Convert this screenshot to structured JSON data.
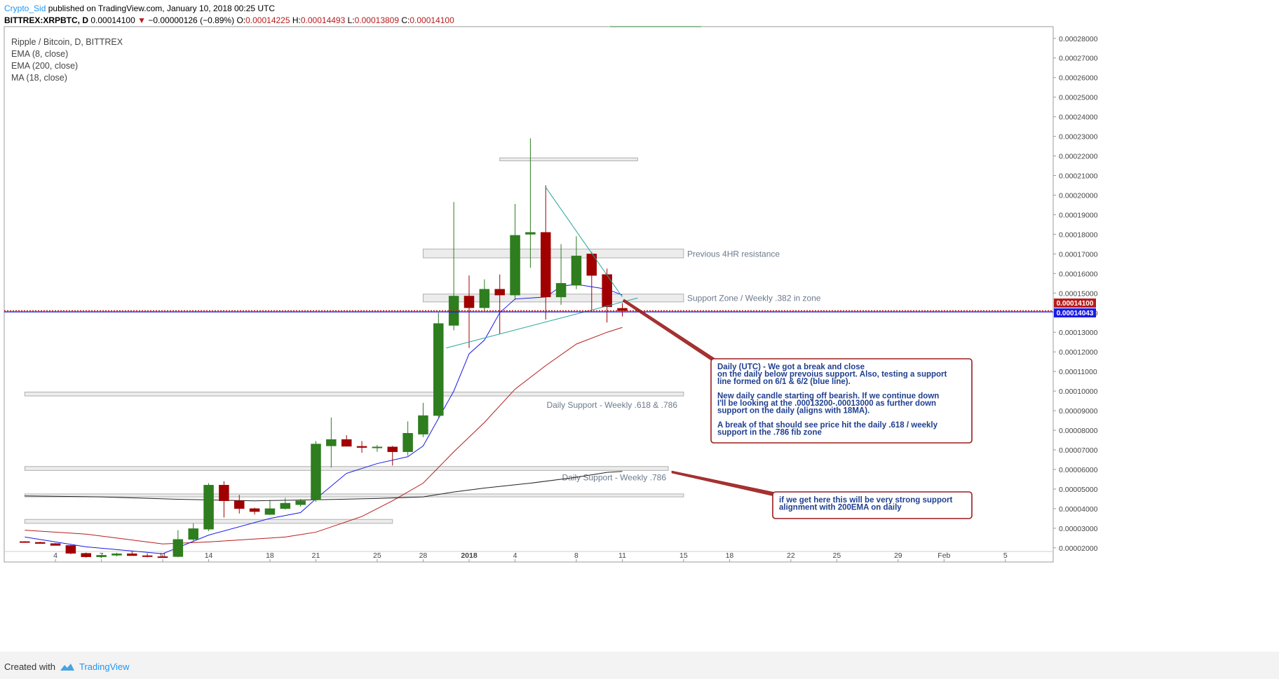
{
  "header": {
    "author": "Crypto_Sid",
    "published": "published on TradingView.com, January 10, 2018 00:25 UTC",
    "symbol": "BITTREX:XRPBTC, D",
    "last": "0.00014100",
    "change": "−0.00000126 (−0.89%)",
    "open_label": "O:",
    "open": "0.00014225",
    "high_label": "H:",
    "high": "0.00014493",
    "low_label": "L:",
    "low": "0.00013809",
    "close_label": "C:",
    "close": "0.00014100"
  },
  "legend": {
    "title": "Ripple / Bitcoin, D, BITTREX",
    "ema8": "EMA (8, close)",
    "ema200": "EMA (200, close)",
    "ma18": "MA (18, close)"
  },
  "footer": {
    "created_with": "Created with",
    "brand": "TradingView"
  },
  "chart_data": {
    "type": "candlestick",
    "ylim": [
      1.85e-05,
      0.000286
    ],
    "y_tick_values": [
      2e-05,
      3e-05,
      4e-05,
      5e-05,
      6e-05,
      7e-05,
      8e-05,
      9e-05,
      0.0001,
      0.00011,
      0.00012,
      0.00013,
      0.00014,
      0.00015,
      0.00016,
      0.00017,
      0.00018,
      0.00019,
      0.0002,
      0.00021,
      0.00022,
      0.00023,
      0.00024,
      0.00025,
      0.00026,
      0.00027,
      0.00028
    ],
    "y_tick_labels": [
      "0.00002000",
      "0.00003000",
      "0.00004000",
      "0.00005000",
      "0.00006000",
      "0.00007000",
      "0.00008000",
      "0.00009000",
      "0.00010000",
      "0.00011000",
      "0.00012000",
      "0.00013000",
      "0.00014000",
      "0.00015000",
      "0.00016000",
      "0.00017000",
      "0.00018000",
      "0.00019000",
      "0.00020000",
      "0.00021000",
      "0.00022000",
      "0.00023000",
      "0.00024000",
      "0.00025000",
      "0.00026000",
      "0.00027000",
      "0.00028000"
    ],
    "x_ticks": [
      {
        "label": "4",
        "day": -27
      },
      {
        "label": "7",
        "day": -24
      },
      {
        "label": "11",
        "day": -20
      },
      {
        "label": "14",
        "day": -17
      },
      {
        "label": "18",
        "day": -13
      },
      {
        "label": "21",
        "day": -10
      },
      {
        "label": "25",
        "day": -6
      },
      {
        "label": "28",
        "day": -3
      },
      {
        "label": "2018",
        "day": 0
      },
      {
        "label": "4",
        "day": 3
      },
      {
        "label": "8",
        "day": 7
      },
      {
        "label": "11",
        "day": 10
      },
      {
        "label": "15",
        "day": 14
      },
      {
        "label": "18",
        "day": 17
      },
      {
        "label": "22",
        "day": 21
      },
      {
        "label": "25",
        "day": 24
      },
      {
        "label": "29",
        "day": 28
      },
      {
        "label": "Feb",
        "day": 31
      },
      {
        "label": "5",
        "day": 35
      }
    ],
    "candles": [
      {
        "day": -29,
        "o": 2.32e-05,
        "h": 2.34e-05,
        "l": 2.28e-05,
        "c": 2.28e-05
      },
      {
        "day": -28,
        "o": 2.28e-05,
        "h": 2.31e-05,
        "l": 2.22e-05,
        "c": 2.22e-05
      },
      {
        "day": -27,
        "o": 2.22e-05,
        "h": 2.24e-05,
        "l": 2.12e-05,
        "c": 2.12e-05
      },
      {
        "day": -26,
        "o": 2.12e-05,
        "h": 2.14e-05,
        "l": 1.68e-05,
        "c": 1.72e-05
      },
      {
        "day": -25,
        "o": 1.72e-05,
        "h": 1.76e-05,
        "l": 1.5e-05,
        "c": 1.54e-05
      },
      {
        "day": -24,
        "o": 1.54e-05,
        "h": 1.65e-05,
        "l": 1.48e-05,
        "c": 1.62e-05
      },
      {
        "day": -23,
        "o": 1.62e-05,
        "h": 1.75e-05,
        "l": 1.56e-05,
        "c": 1.7e-05
      },
      {
        "day": -22,
        "o": 1.7e-05,
        "h": 1.82e-05,
        "l": 1.6e-05,
        "c": 1.6e-05
      },
      {
        "day": -21,
        "o": 1.6e-05,
        "h": 1.72e-05,
        "l": 1.52e-05,
        "c": 1.55e-05
      },
      {
        "day": -20,
        "o": 1.55e-05,
        "h": 1.65e-05,
        "l": 1.5e-05,
        "c": 1.52e-05
      },
      {
        "day": -19,
        "o": 1.55e-05,
        "h": 2.9e-05,
        "l": 1.52e-05,
        "c": 2.43e-05
      },
      {
        "day": -18,
        "o": 2.43e-05,
        "h": 3.25e-05,
        "l": 2.35e-05,
        "c": 2.98e-05
      },
      {
        "day": -17,
        "o": 2.95e-05,
        "h": 5.3e-05,
        "l": 2.85e-05,
        "c": 5.2e-05
      },
      {
        "day": -16,
        "o": 5.2e-05,
        "h": 5.4e-05,
        "l": 3.55e-05,
        "c": 4.4e-05
      },
      {
        "day": -15,
        "o": 4.4e-05,
        "h": 4.7e-05,
        "l": 3.75e-05,
        "c": 4e-05
      },
      {
        "day": -14,
        "o": 4e-05,
        "h": 4.05e-05,
        "l": 3.7e-05,
        "c": 3.85e-05
      },
      {
        "day": -13,
        "o": 3.7e-05,
        "h": 4.45e-05,
        "l": 3.68e-05,
        "c": 4e-05
      },
      {
        "day": -12,
        "o": 4e-05,
        "h": 4.55e-05,
        "l": 3.95e-05,
        "c": 4.28e-05
      },
      {
        "day": -11,
        "o": 4.2e-05,
        "h": 4.5e-05,
        "l": 4.1e-05,
        "c": 4.4e-05
      },
      {
        "day": -10,
        "o": 4.45e-05,
        "h": 7.45e-05,
        "l": 4.35e-05,
        "c": 7.3e-05
      },
      {
        "day": -9,
        "o": 7.2e-05,
        "h": 8.65e-05,
        "l": 6.1e-05,
        "c": 7.53e-05
      },
      {
        "day": -8,
        "o": 7.53e-05,
        "h": 7.75e-05,
        "l": 7.18e-05,
        "c": 7.18e-05
      },
      {
        "day": -7,
        "o": 7.18e-05,
        "h": 7.45e-05,
        "l": 6.85e-05,
        "c": 7.12e-05
      },
      {
        "day": -6,
        "o": 7.12e-05,
        "h": 7.25e-05,
        "l": 6.9e-05,
        "c": 7.15e-05
      },
      {
        "day": -5,
        "o": 7.15e-05,
        "h": 7.2e-05,
        "l": 6.2e-05,
        "c": 6.9e-05
      },
      {
        "day": -4,
        "o": 6.9e-05,
        "h": 8.45e-05,
        "l": 6.7e-05,
        "c": 7.85e-05
      },
      {
        "day": -3,
        "o": 7.8e-05,
        "h": 9.4e-05,
        "l": 7.65e-05,
        "c": 8.75e-05
      },
      {
        "day": -2,
        "o": 8.75e-05,
        "h": 0.00014,
        "l": 8.65e-05,
        "c": 0.0001345
      },
      {
        "day": -1,
        "o": 0.0001335,
        "h": 0.0001965,
        "l": 0.000131,
        "c": 0.0001485
      },
      {
        "day": 0,
        "o": 0.0001485,
        "h": 0.000159,
        "l": 0.000122,
        "c": 0.0001425
      },
      {
        "day": 1,
        "o": 0.0001425,
        "h": 0.000157,
        "l": 0.000141,
        "c": 0.000152
      },
      {
        "day": 2,
        "o": 0.000152,
        "h": 0.0001595,
        "l": 0.000129,
        "c": 0.000149
      },
      {
        "day": 3,
        "o": 0.000149,
        "h": 0.0001955,
        "l": 0.0001465,
        "c": 0.0001795
      },
      {
        "day": 4,
        "o": 0.00018,
        "h": 0.000229,
        "l": 0.000163,
        "c": 0.000181
      },
      {
        "day": 5,
        "o": 0.000181,
        "h": 0.000205,
        "l": 0.0001365,
        "c": 0.000148
      },
      {
        "day": 6,
        "o": 0.000148,
        "h": 0.000175,
        "l": 0.000144,
        "c": 0.000155
      },
      {
        "day": 7,
        "o": 0.000154,
        "h": 0.000179,
        "l": 0.000152,
        "c": 0.000169
      },
      {
        "day": 8,
        "o": 0.00017,
        "h": 0.000171,
        "l": 0.0001405,
        "c": 0.000159
      },
      {
        "day": 9,
        "o": 0.0001595,
        "h": 0.0001625,
        "l": 0.000135,
        "c": 0.000143
      },
      {
        "day": 10,
        "o": 0.00014225,
        "h": 0.00014493,
        "l": 0.00013809,
        "c": 0.000141
      }
    ],
    "ema8": [
      [
        -29,
        2.55e-05
      ],
      [
        -25,
        2.05e-05
      ],
      [
        -20,
        1.7e-05
      ],
      [
        -17,
        2.65e-05
      ],
      [
        -13,
        3.5e-05
      ],
      [
        -11,
        3.8e-05
      ],
      [
        -10,
        4.5e-05
      ],
      [
        -8,
        5.8e-05
      ],
      [
        -6,
        6.3e-05
      ],
      [
        -4,
        6.65e-05
      ],
      [
        -3,
        7.2e-05
      ],
      [
        -2,
        8.6e-05
      ],
      [
        -1,
        0.0001
      ],
      [
        0,
        0.000119
      ],
      [
        1,
        0.000126
      ],
      [
        2,
        0.00014
      ],
      [
        3,
        0.000147
      ],
      [
        5,
        0.000148
      ],
      [
        6,
        0.0001535
      ],
      [
        7,
        0.0001545
      ],
      [
        9,
        0.000152
      ],
      [
        10,
        0.000149
      ]
    ],
    "ema200": [
      [
        -29,
        4.65e-05
      ],
      [
        -24,
        4.6e-05
      ],
      [
        -19,
        4.48e-05
      ],
      [
        -14,
        4.4e-05
      ],
      [
        -10,
        4.45e-05
      ],
      [
        -6,
        4.52e-05
      ],
      [
        -3,
        4.6e-05
      ],
      [
        -1,
        4.85e-05
      ],
      [
        1,
        5.05e-05
      ],
      [
        4,
        5.3e-05
      ],
      [
        7,
        5.6e-05
      ],
      [
        9,
        5.85e-05
      ],
      [
        10,
        5.9e-05
      ]
    ],
    "ma18": [
      [
        -29,
        2.9e-05
      ],
      [
        -25,
        2.7e-05
      ],
      [
        -20,
        2.2e-05
      ],
      [
        -17,
        2.3e-05
      ],
      [
        -12,
        2.55e-05
      ],
      [
        -10,
        2.8e-05
      ],
      [
        -7,
        3.6e-05
      ],
      [
        -5,
        4.4e-05
      ],
      [
        -3,
        5.3e-05
      ],
      [
        -1,
        6.9e-05
      ],
      [
        1,
        8.4e-05
      ],
      [
        3,
        0.000101
      ],
      [
        5,
        0.000113
      ],
      [
        7,
        0.000124
      ],
      [
        9,
        0.00013
      ],
      [
        10,
        0.0001325
      ]
    ],
    "zones": [
      {
        "from": -3,
        "to": 14,
        "top": 0.0001725,
        "bottom": 0.000168,
        "label": "Previous 4HR resistance"
      },
      {
        "from": -3,
        "to": 14,
        "top": 0.0001495,
        "bottom": 0.0001455,
        "label": "Support Zone /  Weekly .382 in zone"
      },
      {
        "from": 2,
        "to": 11,
        "top": 0.000219,
        "bottom": 0.0002175,
        "label": ""
      },
      {
        "from": -29,
        "to": 14,
        "top": 9.95e-05,
        "bottom": 9.75e-05,
        "label": "Daily Support - Weekly .618 & .786"
      },
      {
        "from": -29,
        "to": 13,
        "top": 6.15e-05,
        "bottom": 5.95e-05,
        "label": "Daily Support - Weekly .786"
      },
      {
        "from": -29,
        "to": 14,
        "top": 4.75e-05,
        "bottom": 4.6e-05,
        "label": ""
      },
      {
        "from": -29,
        "to": -5,
        "top": 3.45e-05,
        "bottom": 3.25e-05,
        "label": ""
      }
    ],
    "trendlines": [
      {
        "x1": -1.5,
        "y1": 0.000122,
        "x2": 11,
        "y2": 0.0001475,
        "color": "#26a69a"
      },
      {
        "x1": 5,
        "y1": 0.000204,
        "x2": 10,
        "y2": 0.000148,
        "color": "#26a69a"
      }
    ],
    "price_lines": [
      {
        "value": 0.000141,
        "label": "0.00014100",
        "color": "#b71c1c"
      },
      {
        "value": 0.00014043,
        "label": "0.00014043",
        "color": "#1a1ae6"
      }
    ],
    "annotations": [
      {
        "lines": [
          "Daily (UTC) -  We got a break and close",
          "on the daily below prevoius support.   Also, testing a support",
          "line formed on 6/1 & 6/2 (blue line).",
          "",
          "New daily candle starting off bearish.  If we continue down",
          "I'll be looking at the .00013200-.00013000 as further down",
          "support on the daily (aligns with 18MA).",
          "",
          "A break of that should see price hit the daily .618 / weekly",
          "support in the .786 fib zone"
        ]
      },
      {
        "lines": [
          "if we get here this will be very strong support",
          "alignment with 200EMA on daily"
        ]
      }
    ]
  }
}
